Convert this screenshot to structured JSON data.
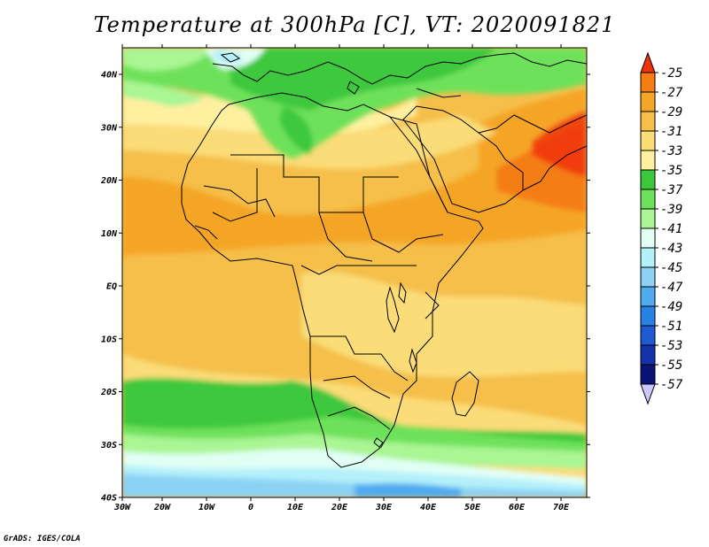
{
  "title": "Temperature at 300hPa [C], VT: 2020091821",
  "footer": "GrADS: IGES/COLA",
  "map": {
    "lat_labels": [
      "40N",
      "30N",
      "20N",
      "10N",
      "EQ",
      "10S",
      "20S",
      "30S",
      "40S"
    ],
    "lon_labels": [
      "30W",
      "20W",
      "10W",
      "0",
      "10E",
      "20E",
      "30E",
      "40E",
      "50E",
      "60E",
      "70E"
    ]
  },
  "colorbar": {
    "levels": [
      "-25",
      "-27",
      "-29",
      "-31",
      "-33",
      "-35",
      "-37",
      "-39",
      "-41",
      "-43",
      "-45",
      "-47",
      "-49",
      "-51",
      "-53",
      "-55",
      "-57"
    ],
    "colors": [
      "#f0320a",
      "#f57d14",
      "#f5a528",
      "#f5bf4a",
      "#fadc78",
      "#fff0a0",
      "#3cc83c",
      "#6ee15a",
      "#aaf594",
      "#e1fff5",
      "#b4f0fa",
      "#8cd2f5",
      "#50aaf0",
      "#2882e6",
      "#1e5ad2",
      "#1432aa",
      "#0a1478",
      "#ccc8ff"
    ]
  }
}
